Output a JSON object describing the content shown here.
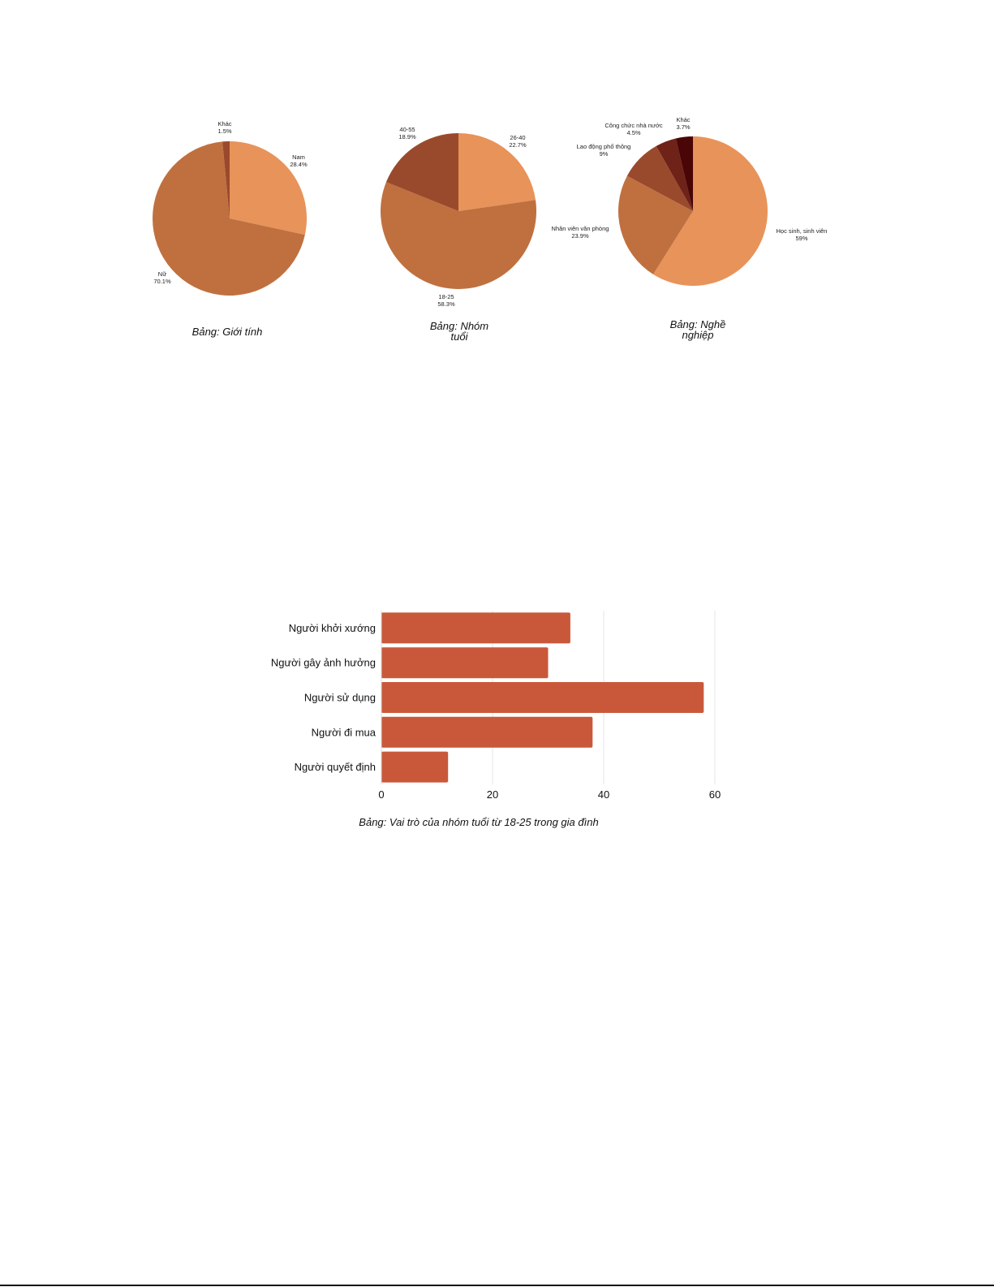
{
  "chart_data": [
    {
      "type": "pie",
      "title": "Bảng: Giới tính",
      "slices": [
        {
          "label": "Nam",
          "value_text": "28.4%",
          "value": 28.4,
          "color": "#e8935a"
        },
        {
          "label": "Nữ",
          "value_text": "70.1%",
          "value": 70.1,
          "color": "#c0703f"
        },
        {
          "label": "Khác",
          "value_text": "1.5%",
          "value": 1.5,
          "color": "#9a4a2c"
        }
      ]
    },
    {
      "type": "pie",
      "title": "Bảng: Nhóm tuổi",
      "slices": [
        {
          "label": "26-40",
          "value_text": "22.7%",
          "value": 22.7,
          "color": "#e8935a"
        },
        {
          "label": "18-25",
          "value_text": "58.3%",
          "value": 58.3,
          "color": "#c0703f"
        },
        {
          "label": "40-55",
          "value_text": "18.9%",
          "value": 18.9,
          "color": "#9a4a2c"
        }
      ]
    },
    {
      "type": "pie",
      "title": "Bảng: Nghề nghiệp",
      "slices": [
        {
          "label": "Học sinh, sinh viên",
          "value_text": "59%",
          "value": 59,
          "color": "#e8935a"
        },
        {
          "label": "Nhân viên văn phòng",
          "value_text": "23.9%",
          "value": 23.9,
          "color": "#c0703f"
        },
        {
          "label": "Lao động phổ thông",
          "value_text": "9%",
          "value": 9,
          "color": "#9a4a2c"
        },
        {
          "label": "Công chức nhà nước",
          "value_text": "4.5%",
          "value": 4.5,
          "color": "#6e2218"
        },
        {
          "label": "Khác",
          "value_text": "3.7%",
          "value": 3.7,
          "color": "#4a0606"
        }
      ]
    },
    {
      "type": "bar",
      "orientation": "horizontal",
      "title": "Bảng: Vai trò của nhóm tuổi từ 18-25 trong gia đình",
      "categories": [
        "Người khởi xướng",
        "Người gây ảnh hưởng",
        "Người sử dụng",
        "Người đi mua",
        "Người quyết định"
      ],
      "values": [
        34,
        30,
        58,
        38,
        12
      ],
      "xlim": [
        0,
        60
      ],
      "xticks": [
        0,
        20,
        40,
        60
      ],
      "grid": true,
      "color": "#c9583a"
    }
  ]
}
